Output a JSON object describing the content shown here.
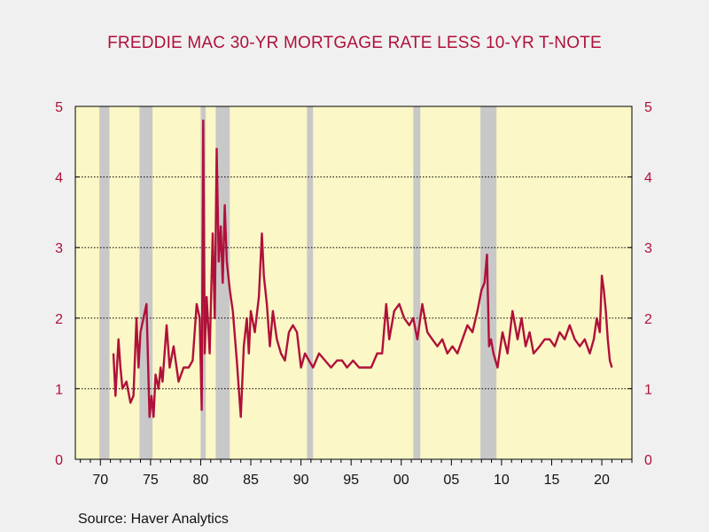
{
  "title": "FREDDIE MAC 30-YR MORTGAGE RATE LESS 10-YR T-NOTE",
  "source": "Source:  Haver Analytics",
  "colors": {
    "series": "#b0103a",
    "plot_bg": "#fbf7c6",
    "recession": "#c8c8c8",
    "page_bg": "#f0f0f0"
  },
  "chart_data": {
    "type": "line",
    "title": "FREDDIE MAC 30-YR MORTGAGE RATE LESS 10-YR T-NOTE",
    "xlabel": "",
    "ylabel": "",
    "xlim": [
      1967.5,
      2023
    ],
    "ylim": [
      0,
      5
    ],
    "grid": "horizontal dotted",
    "y_ticks": [
      0,
      1,
      2,
      3,
      4,
      5
    ],
    "y_tick_labels": [
      "0",
      "1",
      "2",
      "3",
      "4",
      "5"
    ],
    "x_ticks": [
      1970,
      1975,
      1980,
      1985,
      1990,
      1995,
      2000,
      2005,
      2010,
      2015,
      2020
    ],
    "x_tick_labels": [
      "70",
      "75",
      "80",
      "85",
      "90",
      "95",
      "00",
      "05",
      "10",
      "15",
      "20"
    ],
    "recession_shading": [
      [
        1969.9,
        1970.9
      ],
      [
        1973.9,
        1975.2
      ],
      [
        1980.0,
        1980.5
      ],
      [
        1981.5,
        1982.9
      ],
      [
        1990.6,
        1991.2
      ],
      [
        2001.2,
        2001.9
      ],
      [
        2007.9,
        2009.5
      ]
    ],
    "series": [
      {
        "x": [
          1971.3,
          1971.5,
          1971.8,
          1972.0,
          1972.2,
          1972.6,
          1973.0,
          1973.3,
          1973.6,
          1973.8,
          1974.0,
          1974.3,
          1974.6,
          1974.9,
          1975.1,
          1975.3,
          1975.5,
          1975.8,
          1976.0,
          1976.2,
          1976.6,
          1976.9,
          1977.3,
          1977.8,
          1978.3,
          1978.8,
          1979.2,
          1979.6,
          1979.9,
          1980.1,
          1980.25,
          1980.4,
          1980.6,
          1980.9,
          1981.2,
          1981.4,
          1981.6,
          1981.8,
          1982.0,
          1982.2,
          1982.4,
          1982.6,
          1982.9,
          1983.2,
          1983.6,
          1984.0,
          1984.3,
          1984.6,
          1984.8,
          1985.0,
          1985.4,
          1985.8,
          1986.1,
          1986.3,
          1986.6,
          1986.9,
          1987.2,
          1987.6,
          1988.0,
          1988.4,
          1988.8,
          1989.2,
          1989.6,
          1990.0,
          1990.4,
          1990.8,
          1991.2,
          1991.8,
          1992.4,
          1993.0,
          1993.6,
          1994.1,
          1994.6,
          1995.2,
          1995.8,
          1996.4,
          1997.0,
          1997.6,
          1998.1,
          1998.5,
          1998.8,
          1999.3,
          1999.8,
          2000.3,
          2000.8,
          2001.2,
          2001.6,
          2002.1,
          2002.6,
          2003.1,
          2003.6,
          2004.1,
          2004.6,
          2005.1,
          2005.6,
          2006.1,
          2006.6,
          2007.1,
          2007.6,
          2008.0,
          2008.3,
          2008.55,
          2008.75,
          2008.95,
          2009.2,
          2009.6,
          2010.1,
          2010.6,
          2011.1,
          2011.6,
          2012.0,
          2012.4,
          2012.8,
          2013.2,
          2013.8,
          2014.3,
          2014.8,
          2015.3,
          2015.8,
          2016.3,
          2016.8,
          2017.3,
          2017.8,
          2018.3,
          2018.8,
          2019.2,
          2019.5,
          2019.8,
          2020.0,
          2020.2,
          2020.4,
          2020.6,
          2020.8,
          2021.0
        ],
        "values": [
          1.5,
          0.9,
          1.7,
          1.3,
          1.0,
          1.1,
          0.8,
          0.9,
          2.0,
          1.3,
          1.8,
          2.0,
          2.2,
          0.6,
          0.9,
          0.6,
          1.2,
          1.0,
          1.3,
          1.1,
          1.9,
          1.3,
          1.6,
          1.1,
          1.3,
          1.3,
          1.4,
          2.2,
          2.0,
          0.7,
          4.8,
          1.5,
          2.3,
          1.5,
          3.2,
          2.0,
          4.4,
          2.8,
          3.3,
          2.5,
          3.6,
          2.8,
          2.4,
          2.1,
          1.4,
          0.6,
          1.6,
          2.0,
          1.5,
          2.1,
          1.8,
          2.3,
          3.2,
          2.6,
          2.2,
          1.6,
          2.1,
          1.7,
          1.5,
          1.4,
          1.8,
          1.9,
          1.8,
          1.3,
          1.5,
          1.4,
          1.3,
          1.5,
          1.4,
          1.3,
          1.4,
          1.4,
          1.3,
          1.4,
          1.3,
          1.3,
          1.3,
          1.5,
          1.5,
          2.2,
          1.7,
          2.1,
          2.2,
          2.0,
          1.9,
          2.0,
          1.7,
          2.2,
          1.8,
          1.7,
          1.6,
          1.7,
          1.5,
          1.6,
          1.5,
          1.7,
          1.9,
          1.8,
          2.1,
          2.4,
          2.5,
          2.9,
          1.6,
          1.7,
          1.5,
          1.3,
          1.8,
          1.5,
          2.1,
          1.7,
          2.0,
          1.6,
          1.8,
          1.5,
          1.6,
          1.7,
          1.7,
          1.6,
          1.8,
          1.7,
          1.9,
          1.7,
          1.6,
          1.7,
          1.5,
          1.7,
          2.0,
          1.8,
          2.6,
          2.4,
          2.1,
          1.7,
          1.4,
          1.3
        ]
      }
    ]
  }
}
